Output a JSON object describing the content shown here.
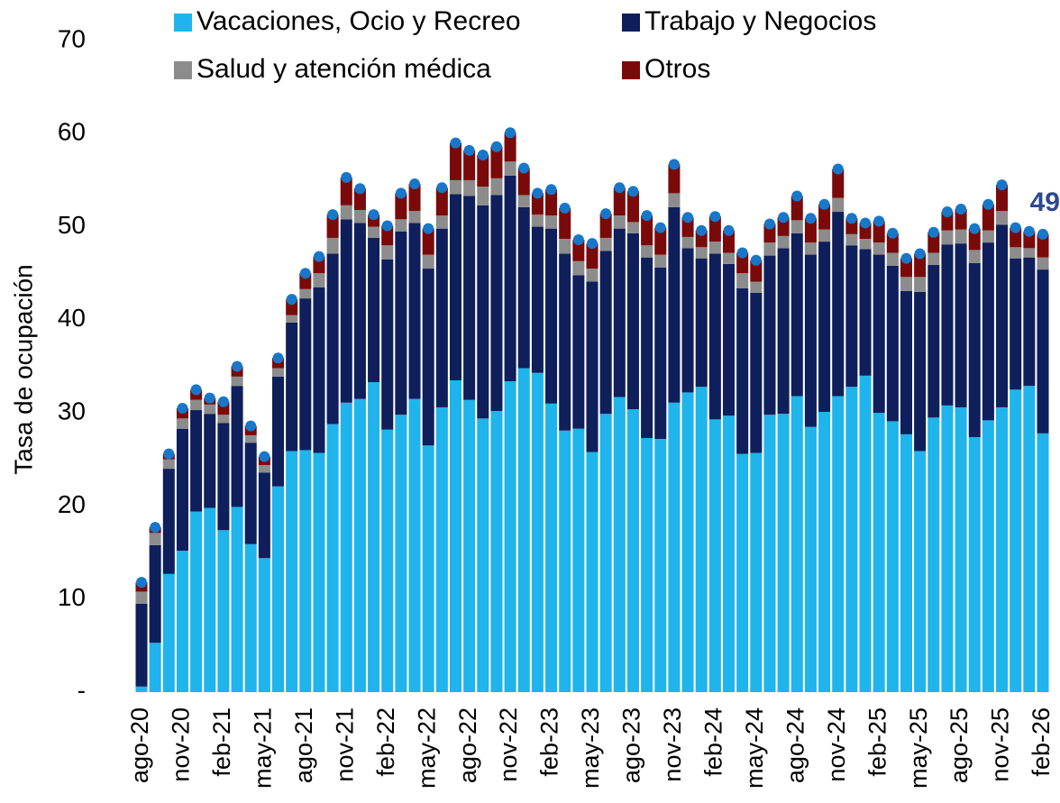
{
  "chart_data": {
    "type": "stacked_bar",
    "ylabel": "Tasa de ocupación",
    "annotation": "49",
    "legend": "top",
    "grid": false,
    "ylim": [
      0,
      70
    ],
    "yticks": [
      {
        "value": 0,
        "label": "-"
      },
      10,
      20,
      30,
      40,
      50,
      60,
      70
    ],
    "categories": [
      "ago-20",
      null,
      null,
      "nov-20",
      null,
      null,
      "feb-21",
      null,
      null,
      "may-21",
      null,
      null,
      "ago-21",
      null,
      null,
      "nov-21",
      null,
      null,
      "feb-22",
      null,
      null,
      "may-22",
      null,
      null,
      "ago-22",
      null,
      null,
      "nov-22",
      null,
      null,
      "feb-23",
      null,
      null,
      "may-23",
      null,
      null,
      "ago-23",
      null,
      null,
      "nov-23",
      null,
      null,
      "feb-24",
      null,
      null,
      "may-24",
      null,
      null,
      "ago-24",
      null,
      null,
      "nov-24",
      null,
      null,
      "feb-25",
      null,
      null,
      "may-25",
      null,
      null,
      "ago-25",
      null,
      null,
      "nov-25",
      null,
      null,
      "feb-26"
    ],
    "series": [
      {
        "name": "Vacaciones, Ocio y Recreo",
        "color": "#1fb4eb",
        "values": [
          0.6,
          5.3,
          12.7,
          15.2,
          19.4,
          19.8,
          17.4,
          19.9,
          15.9,
          14.4,
          22.1,
          25.9,
          26.0,
          25.7,
          28.8,
          31.1,
          31.5,
          33.3,
          28.2,
          29.8,
          31.5,
          26.5,
          30.6,
          33.5,
          31.4,
          29.4,
          30.2,
          33.4,
          34.8,
          34.3,
          31.0,
          28.1,
          28.3,
          25.8,
          29.9,
          31.7,
          30.4,
          27.3,
          27.2,
          31.1,
          32.2,
          32.8,
          29.3,
          29.7,
          25.6,
          25.7,
          29.8,
          29.9,
          31.8,
          28.5,
          30.1,
          31.8,
          32.8,
          34.0,
          30.0,
          29.1,
          27.7,
          25.9,
          29.5,
          30.8,
          30.6,
          27.4,
          29.2,
          30.6,
          32.5,
          32.9,
          27.8
        ]
      },
      {
        "name": "Trabajo y Negocios",
        "color": "#0e1f5b",
        "values": [
          8.9,
          10.5,
          11.3,
          13.1,
          10.9,
          10.1,
          11.5,
          13.0,
          10.9,
          9.2,
          11.8,
          13.8,
          16.3,
          17.8,
          18.3,
          19.7,
          18.9,
          15.5,
          18.3,
          19.7,
          18.9,
          19.0,
          19.2,
          20.0,
          21.9,
          22.9,
          23.2,
          22.1,
          17.3,
          15.7,
          18.8,
          19.0,
          16.5,
          18.3,
          17.5,
          18.1,
          18.9,
          19.4,
          18.4,
          21.0,
          15.5,
          13.8,
          17.8,
          16.3,
          17.8,
          17.2,
          17.1,
          17.8,
          17.5,
          18.5,
          18.3,
          19.8,
          15.2,
          13.6,
          17.0,
          16.7,
          15.4,
          17.1,
          16.4,
          17.3,
          17.6,
          18.7,
          19.1,
          19.6,
          14.1,
          13.8,
          17.6
        ]
      },
      {
        "name": "Salud y atención médica",
        "color": "#8c8c8c",
        "values": [
          1.3,
          1.3,
          1.0,
          1.1,
          1.1,
          1.0,
          0.9,
          1.0,
          0.8,
          0.8,
          0.9,
          0.8,
          1.0,
          1.5,
          1.7,
          1.5,
          1.4,
          1.2,
          1.5,
          1.3,
          1.3,
          1.5,
          1.4,
          1.5,
          1.7,
          2.0,
          1.8,
          1.5,
          1.3,
          1.3,
          1.4,
          1.6,
          1.5,
          1.4,
          1.4,
          1.4,
          1.2,
          1.3,
          1.4,
          1.5,
          1.2,
          1.2,
          1.3,
          1.2,
          1.6,
          1.2,
          1.4,
          1.3,
          1.4,
          1.3,
          1.3,
          1.5,
          1.2,
          1.1,
          1.3,
          1.4,
          1.5,
          1.6,
          1.3,
          1.5,
          1.5,
          1.4,
          1.3,
          1.5,
          1.2,
          1.0,
          1.3
        ]
      },
      {
        "name": "Otros",
        "color": "#7a0a0a",
        "values": [
          1.0,
          0.6,
          0.6,
          1.1,
          1.1,
          0.7,
          1.4,
          1.1,
          1.0,
          0.9,
          1.1,
          1.7,
          1.7,
          1.8,
          2.5,
          3.0,
          2.3,
          1.3,
          2.1,
          2.8,
          2.9,
          2.8,
          3.0,
          4.0,
          3.2,
          3.4,
          3.4,
          3.1,
          2.9,
          2.3,
          2.8,
          3.3,
          2.3,
          2.7,
          2.6,
          3.0,
          3.3,
          3.2,
          2.9,
          3.1,
          2.1,
          1.8,
          2.7,
          2.4,
          2.2,
          2.3,
          2.0,
          2.0,
          2.6,
          2.6,
          2.7,
          3.1,
          1.7,
          1.7,
          2.3,
          2.1,
          2.0,
          2.5,
          2.2,
          2.0,
          2.2,
          2.3,
          2.8,
          2.8,
          2.1,
          1.8,
          2.5
        ]
      }
    ]
  }
}
